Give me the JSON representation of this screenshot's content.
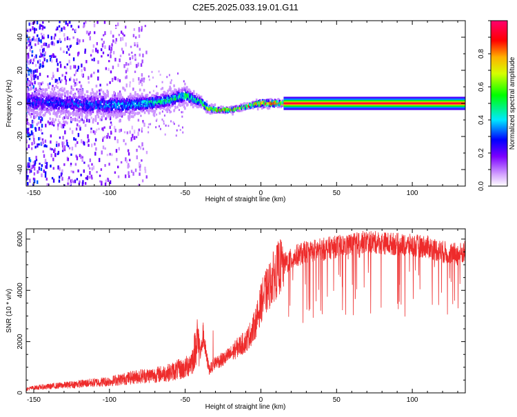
{
  "figure": {
    "title": "C2E5.2025.033.19.01.G11"
  },
  "chart_data": [
    {
      "type": "heatmap",
      "xlabel": "Height of straight line (km)",
      "ylabel": "Frequency (Hz)",
      "xlim": [
        -155,
        135
      ],
      "ylim": [
        -50,
        50
      ],
      "xticks": [
        -150,
        -100,
        -50,
        0,
        50,
        100
      ],
      "yticks": [
        -40,
        -20,
        0,
        20,
        40
      ],
      "colorbar": {
        "label": "Normalized spectral amplitude",
        "range": [
          0,
          1
        ],
        "ticks": [
          0.0,
          0.2,
          0.4,
          0.6,
          0.8
        ],
        "tick_labels": [
          "0.0",
          "0.2",
          "0.4",
          "0.6",
          "0.8"
        ]
      },
      "ridge": {
        "x": [
          -150,
          -130,
          -110,
          -90,
          -75,
          -60,
          -50,
          -45,
          -40,
          -35,
          -30,
          -25,
          -20,
          -15,
          -10,
          -5,
          0,
          5,
          10,
          15,
          20,
          50,
          100,
          135
        ],
        "frequency": [
          1,
          0,
          -1,
          -1,
          0,
          2,
          5,
          3,
          1,
          -3,
          -4,
          -4,
          -4,
          -3,
          -2,
          -1,
          0,
          0,
          0,
          0,
          0,
          0,
          0,
          0
        ],
        "amplitude": [
          0.3,
          0.3,
          0.35,
          0.4,
          0.45,
          0.5,
          0.55,
          0.5,
          0.55,
          0.75,
          0.85,
          0.85,
          0.8,
          0.75,
          0.85,
          0.9,
          0.9,
          0.9,
          0.9,
          0.95,
          0.95,
          0.95,
          0.95,
          0.95
        ],
        "spread_hz": [
          10,
          10,
          9,
          8,
          7,
          6,
          6,
          5,
          4,
          3,
          2,
          2,
          2,
          2,
          2,
          2,
          3,
          3,
          3,
          2,
          2,
          2,
          2,
          2
        ]
      },
      "noise_region": {
        "x_range": [
          -155,
          -75
        ],
        "amplitude_max": 0.3
      }
    },
    {
      "type": "line",
      "xlabel": "Height of straight line (km)",
      "ylabel": "SNR (10 * v/v)",
      "xlim": [
        -155,
        135
      ],
      "ylim": [
        0,
        6400
      ],
      "xticks": [
        -150,
        -100,
        -50,
        0,
        50,
        100
      ],
      "yticks": [
        0,
        2000,
        4000,
        6000
      ],
      "color": "#ee2b2b",
      "series": [
        {
          "x": [
            -155,
            -150,
            -140,
            -130,
            -120,
            -110,
            -100,
            -90,
            -80,
            -70,
            -60,
            -55,
            -50,
            -45,
            -42,
            -40,
            -38,
            -36,
            -34,
            -30,
            -25,
            -20,
            -15,
            -10,
            -5,
            -2,
            0,
            2,
            5,
            8,
            10,
            12,
            15,
            20,
            25,
            30,
            40,
            50,
            60,
            70,
            80,
            90,
            100,
            110,
            120,
            130,
            135
          ],
          "y": [
            150,
            200,
            250,
            300,
            350,
            400,
            450,
            550,
            650,
            700,
            800,
            900,
            950,
            1300,
            2200,
            1500,
            2300,
            1400,
            900,
            1200,
            1300,
            1500,
            1800,
            2000,
            2500,
            3000,
            3500,
            3800,
            4100,
            4500,
            4700,
            4900,
            5000,
            5200,
            5400,
            5500,
            5600,
            5700,
            5800,
            5900,
            5850,
            5800,
            5750,
            5700,
            5500,
            5400,
            5500
          ]
        }
      ]
    }
  ]
}
